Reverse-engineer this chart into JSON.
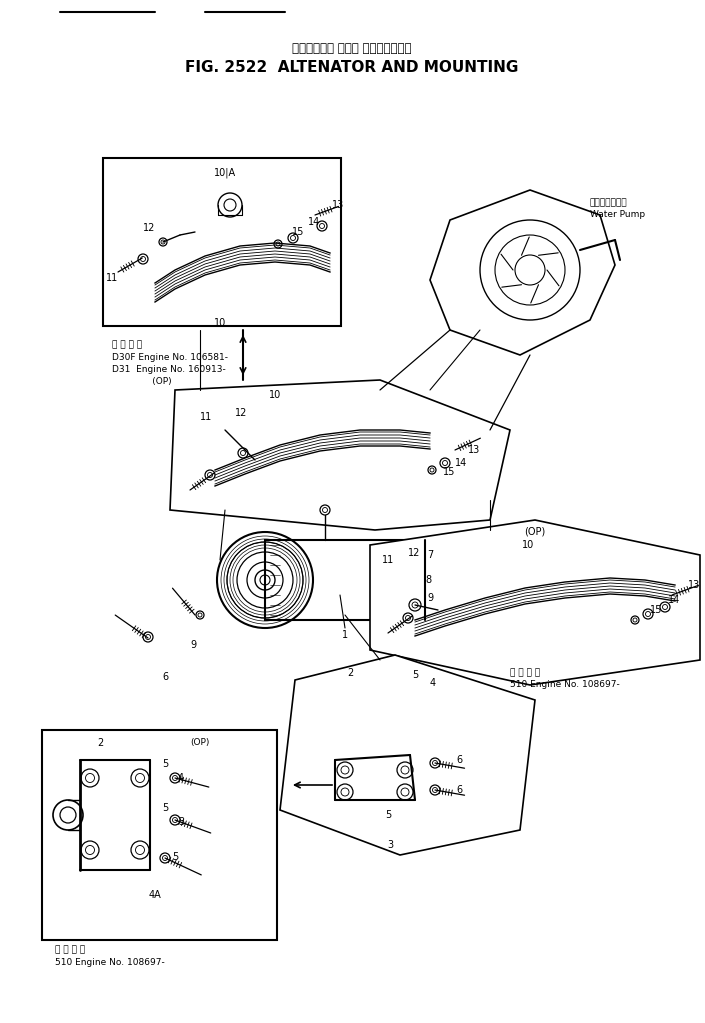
{
  "title_japanese": "オルタネータ および マウンティング",
  "title_english": "FIG. 2522  ALTENATOR AND MOUNTING",
  "bg_color": "#ffffff",
  "fig_width": 7.05,
  "fig_height": 10.23,
  "dpi": 100,
  "water_pump_jp": "ウォータポンプ",
  "water_pump_en": "Water Pump",
  "note_tl_1": "適 用 号 機",
  "note_tl_2": "D30F Engine No. 106581-",
  "note_tl_3": "D31  Engine No. 160913-",
  "note_tl_4": "              (OP)",
  "note_br_1": "適 用 号 機",
  "note_br_2": "510 Engine No. 108697-",
  "note_bl_1": "適 用 号 機",
  "note_bl_2": "510 Engine No. 108697-"
}
